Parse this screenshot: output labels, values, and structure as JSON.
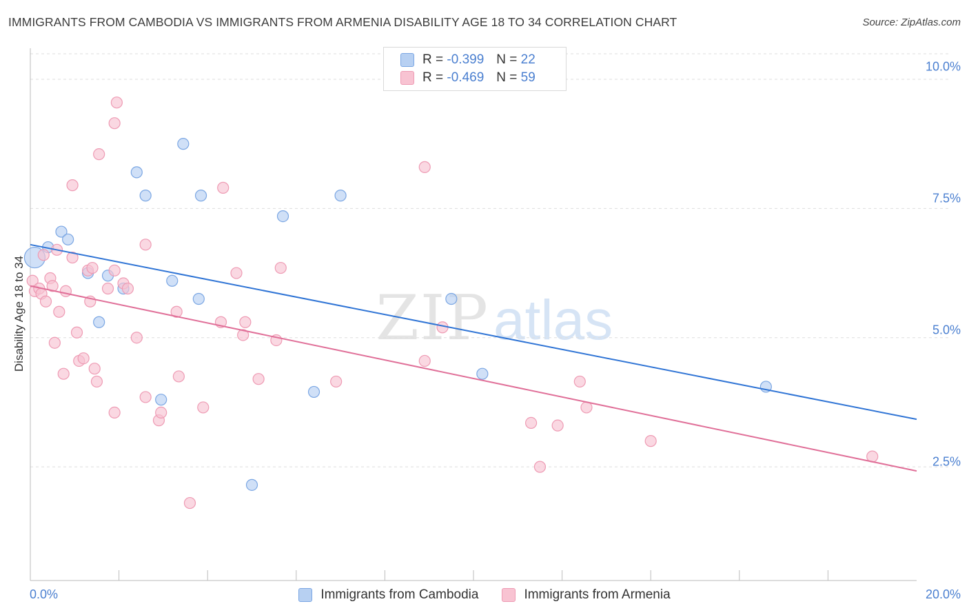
{
  "title": "IMMIGRANTS FROM CAMBODIA VS IMMIGRANTS FROM ARMENIA DISABILITY AGE 18 TO 34 CORRELATION CHART",
  "source": "Source: ZipAtlas.com",
  "watermark": {
    "zip": "ZIP",
    "atlas": "atlas"
  },
  "colors": {
    "cambodia_fill": "#b7d0f2",
    "cambodia_stroke": "#7aa6e3",
    "cambodia_line": "#2f74d5",
    "armenia_fill": "#f8c3d2",
    "armenia_stroke": "#ee9ab3",
    "armenia_line": "#e06f98",
    "tick_label": "#4a7fd0",
    "grid": "#dddddd"
  },
  "legend": {
    "rows": [
      {
        "r_label": "R =",
        "r_value": "-0.399",
        "n_label": "N =",
        "n_value": "22"
      },
      {
        "r_label": "R =",
        "r_value": "-0.469",
        "n_label": "N =",
        "n_value": "59"
      }
    ]
  },
  "bottom_legend": [
    "Immigrants from Cambodia",
    "Immigrants from Armenia"
  ],
  "chart_data": {
    "type": "scatter",
    "title": "IMMIGRANTS FROM CAMBODIA VS IMMIGRANTS FROM ARMENIA DISABILITY AGE 18 TO 34 CORRELATION CHART",
    "xlabel": "",
    "ylabel": "Disability Age 18 to 34",
    "xlim": [
      0,
      20
    ],
    "ylim": [
      0.3,
      10.6
    ],
    "x_tick_labels": [
      "0.0%",
      "20.0%"
    ],
    "y_ticks": [
      2.5,
      5.0,
      7.5,
      10.0
    ],
    "y_tick_labels": [
      "2.5%",
      "5.0%",
      "7.5%",
      "10.0%"
    ],
    "grid": true,
    "series": [
      {
        "name": "Immigrants from Cambodia",
        "points": [
          [
            0.1,
            6.55
          ],
          [
            0.7,
            7.05
          ],
          [
            0.85,
            6.9
          ],
          [
            0.4,
            6.75
          ],
          [
            1.3,
            6.25
          ],
          [
            1.75,
            6.2
          ],
          [
            2.1,
            5.95
          ],
          [
            2.4,
            8.2
          ],
          [
            2.6,
            7.75
          ],
          [
            3.2,
            6.1
          ],
          [
            3.45,
            8.75
          ],
          [
            3.85,
            7.75
          ],
          [
            3.8,
            5.75
          ],
          [
            5.7,
            7.35
          ],
          [
            7.0,
            7.75
          ],
          [
            1.55,
            5.3
          ],
          [
            2.95,
            3.8
          ],
          [
            6.4,
            3.95
          ],
          [
            9.5,
            5.75
          ],
          [
            10.2,
            4.3
          ],
          [
            16.6,
            4.05
          ],
          [
            5.0,
            2.15
          ]
        ],
        "trend": {
          "x": [
            0,
            20
          ],
          "y": [
            6.8,
            3.42
          ]
        }
      },
      {
        "name": "Immigrants from Armenia",
        "points": [
          [
            0.05,
            6.1
          ],
          [
            0.1,
            5.9
          ],
          [
            0.2,
            5.95
          ],
          [
            0.25,
            5.85
          ],
          [
            0.3,
            6.6
          ],
          [
            0.35,
            5.7
          ],
          [
            0.45,
            6.15
          ],
          [
            0.5,
            6.0
          ],
          [
            0.6,
            6.7
          ],
          [
            0.8,
            5.9
          ],
          [
            0.95,
            7.95
          ],
          [
            1.05,
            5.1
          ],
          [
            0.55,
            4.9
          ],
          [
            0.75,
            4.3
          ],
          [
            0.65,
            5.5
          ],
          [
            1.1,
            4.55
          ],
          [
            1.2,
            4.6
          ],
          [
            1.3,
            6.3
          ],
          [
            1.35,
            5.7
          ],
          [
            1.4,
            6.35
          ],
          [
            1.45,
            4.4
          ],
          [
            1.5,
            4.15
          ],
          [
            1.55,
            8.55
          ],
          [
            1.9,
            9.15
          ],
          [
            1.95,
            9.55
          ],
          [
            1.75,
            5.95
          ],
          [
            2.1,
            6.05
          ],
          [
            1.9,
            3.55
          ],
          [
            1.9,
            6.3
          ],
          [
            2.2,
            5.95
          ],
          [
            2.4,
            5.0
          ],
          [
            2.6,
            3.85
          ],
          [
            2.6,
            6.8
          ],
          [
            2.9,
            3.4
          ],
          [
            2.95,
            3.55
          ],
          [
            3.3,
            5.5
          ],
          [
            3.35,
            4.25
          ],
          [
            3.6,
            1.8
          ],
          [
            3.9,
            3.65
          ],
          [
            4.3,
            5.3
          ],
          [
            4.35,
            7.9
          ],
          [
            4.65,
            6.25
          ],
          [
            4.8,
            5.05
          ],
          [
            4.85,
            5.3
          ],
          [
            5.15,
            4.2
          ],
          [
            5.55,
            4.95
          ],
          [
            5.65,
            6.35
          ],
          [
            6.9,
            4.15
          ],
          [
            8.9,
            8.3
          ],
          [
            8.9,
            4.55
          ],
          [
            9.3,
            5.2
          ],
          [
            11.3,
            3.35
          ],
          [
            11.5,
            2.5
          ],
          [
            11.9,
            3.3
          ],
          [
            12.4,
            4.15
          ],
          [
            12.55,
            3.65
          ],
          [
            14.0,
            3.0
          ],
          [
            19.0,
            2.7
          ],
          [
            0.95,
            6.55
          ]
        ],
        "trend": {
          "x": [
            0,
            20
          ],
          "y": [
            6.0,
            2.42
          ]
        }
      }
    ]
  }
}
